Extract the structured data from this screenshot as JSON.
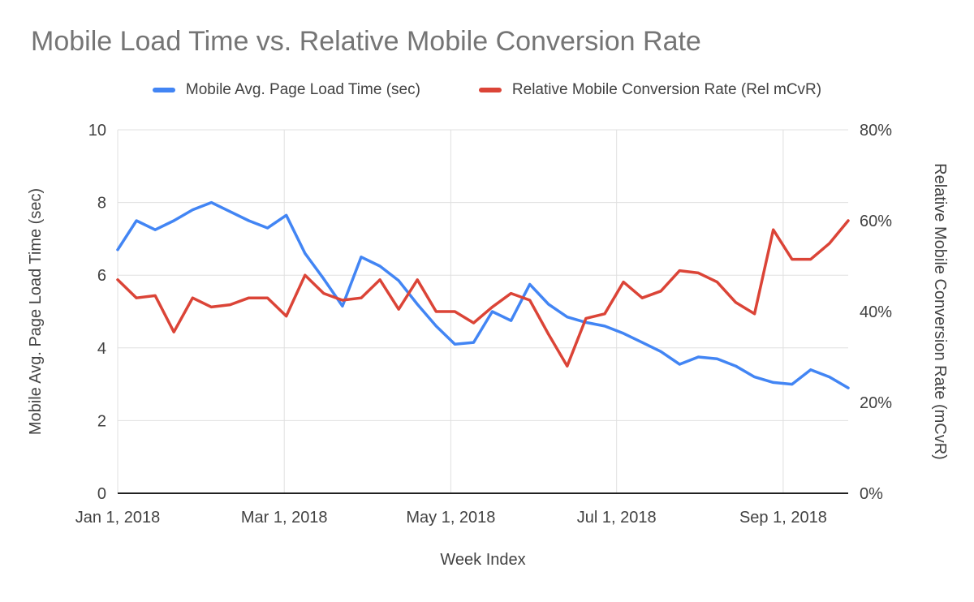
{
  "chart_data": {
    "type": "line",
    "title": "Mobile Load Time vs. Relative Mobile Conversion Rate",
    "legend_position": "top",
    "grid": {
      "line_color": "#e0e0e0",
      "baseline_color": "#212121",
      "vertical_gridlines": true,
      "horizontal_gridlines": true
    },
    "colors": {
      "title": "#757575",
      "axis_text": "#424242",
      "blue_series": "#4285f4",
      "red_series": "#db4437"
    },
    "x_axis": {
      "label": "Week Index",
      "tick_labels": [
        "Jan 1, 2018",
        "Mar 1, 2018",
        "May 1, 2018",
        "Jul 1, 2018",
        "Sep 1, 2018"
      ],
      "tick_positions": [
        0,
        0.228,
        0.456,
        0.683,
        0.911
      ]
    },
    "left_axis": {
      "label": "Mobile Avg. Page Load Time (sec)",
      "ticks": [
        "0",
        "2",
        "4",
        "6",
        "8",
        "10"
      ],
      "tick_values": [
        0,
        2,
        4,
        6,
        8,
        10
      ],
      "range": [
        0,
        10
      ]
    },
    "right_axis": {
      "label": "Relative Mobile Conversion Rate (mCvR)",
      "ticks": [
        "0%",
        "20%",
        "40%",
        "60%",
        "80%"
      ],
      "tick_values": [
        0,
        20,
        40,
        60,
        80
      ],
      "range": [
        0,
        80
      ]
    },
    "series": [
      {
        "name": "Mobile Avg. Page Load Time (sec)",
        "color": "#4285f4",
        "axis": "left",
        "unit": "sec",
        "values": [
          6.7,
          7.5,
          7.25,
          7.5,
          7.8,
          8.0,
          7.75,
          7.5,
          7.3,
          7.65,
          6.6,
          5.9,
          5.15,
          6.5,
          6.25,
          5.85,
          5.2,
          4.6,
          4.1,
          4.15,
          5.0,
          4.75,
          5.75,
          5.2,
          4.85,
          4.7,
          4.6,
          4.4,
          4.15,
          3.9,
          3.55,
          3.75,
          3.7,
          3.5,
          3.2,
          3.05,
          3.0,
          3.4,
          3.2,
          2.9
        ]
      },
      {
        "name": "Relative Mobile Conversion Rate (Rel mCvR)",
        "color": "#db4437",
        "axis": "right",
        "unit": "%",
        "values": [
          47,
          43,
          43.5,
          35.5,
          43,
          41,
          41.5,
          43,
          43,
          39,
          48,
          44,
          42.5,
          43,
          47,
          40.5,
          47,
          40,
          40,
          37.5,
          41,
          44,
          42.5,
          35,
          28,
          38.5,
          39.5,
          46.5,
          43,
          44.5,
          49,
          48.5,
          46.5,
          42,
          39.5,
          58,
          51.5,
          51.5,
          55,
          60
        ]
      }
    ]
  }
}
